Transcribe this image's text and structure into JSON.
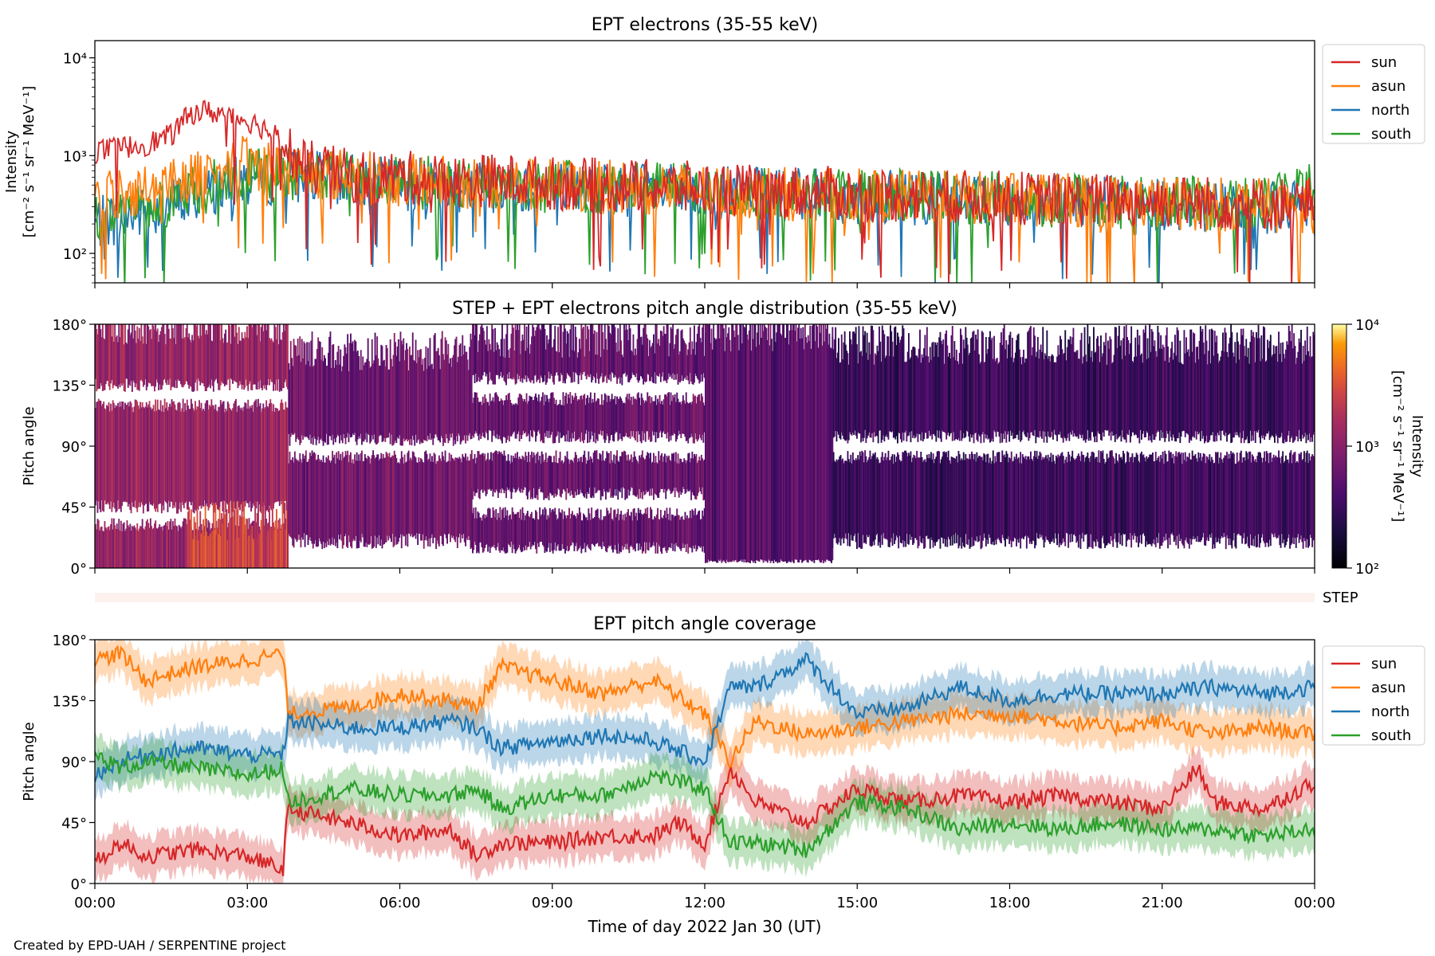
{
  "chart_data": [
    {
      "type": "line",
      "title": "EPT electrons (35-55 keV)",
      "ylabel": "Intensity\n[cm⁻² s⁻¹ sr⁻¹ MeV⁻¹]",
      "yscale": "log",
      "ylim": [
        50,
        15000
      ],
      "yticks": [
        "10²",
        "10³",
        "10⁴"
      ],
      "xlim_hours": [
        0,
        24
      ],
      "legend": "outside-top-right",
      "series": [
        {
          "name": "sun",
          "color": "#d62728",
          "x": [
            0,
            0.5,
            1,
            1.5,
            2,
            2.5,
            3,
            3.5,
            4,
            5,
            6,
            7,
            8,
            9,
            10,
            11,
            12,
            13,
            14,
            15,
            16,
            17,
            18,
            19,
            20,
            21,
            22,
            23,
            24
          ],
          "y": [
            1100,
            1200,
            1300,
            1600,
            2900,
            2700,
            2300,
            1700,
            800,
            620,
            600,
            550,
            560,
            520,
            500,
            480,
            460,
            430,
            420,
            400,
            390,
            380,
            370,
            360,
            350,
            340,
            330,
            320,
            330
          ]
        },
        {
          "name": "asun",
          "color": "#ff7f0e",
          "x": [
            0,
            1,
            2,
            3,
            4,
            5,
            6,
            7,
            8,
            9,
            10,
            11,
            12,
            13,
            14,
            15,
            16,
            17,
            18,
            19,
            20,
            21,
            22,
            23,
            24
          ],
          "y": [
            380,
            450,
            650,
            850,
            700,
            620,
            560,
            530,
            510,
            500,
            480,
            460,
            440,
            420,
            400,
            390,
            380,
            370,
            360,
            350,
            340,
            330,
            320,
            310,
            300
          ]
        },
        {
          "name": "north",
          "color": "#1f77b4",
          "x": [
            0,
            1,
            2,
            3,
            4,
            5,
            6,
            7,
            8,
            9,
            10,
            11,
            12,
            13,
            14,
            15,
            16,
            17,
            18,
            19,
            20,
            21,
            22,
            23,
            24
          ],
          "y": [
            200,
            260,
            380,
            560,
            620,
            560,
            520,
            500,
            490,
            480,
            460,
            440,
            420,
            400,
            390,
            380,
            370,
            360,
            350,
            340,
            330,
            320,
            310,
            300,
            290
          ]
        },
        {
          "name": "south",
          "color": "#2ca02c",
          "x": [
            0,
            1,
            2,
            3,
            4,
            5,
            6,
            7,
            8,
            9,
            10,
            11,
            12,
            13,
            14,
            15,
            16,
            17,
            18,
            19,
            20,
            21,
            22,
            23,
            24
          ],
          "y": [
            250,
            300,
            420,
            620,
            640,
            580,
            540,
            520,
            500,
            490,
            470,
            450,
            430,
            410,
            400,
            390,
            380,
            370,
            360,
            350,
            340,
            330,
            320,
            330,
            480
          ]
        }
      ]
    },
    {
      "type": "heatmap",
      "title": "STEP + EPT electrons pitch angle distribution (35-55 keV)",
      "ylabel": "Pitch angle",
      "yticks": [
        "0°",
        "45°",
        "90°",
        "135°",
        "180°"
      ],
      "ylim": [
        0,
        180
      ],
      "xlim_hours": [
        0,
        24
      ],
      "colorbar": {
        "label": "Intensity\n[cm⁻² s⁻¹ sr⁻¹ MeV⁻¹]",
        "scale": "log",
        "min": 100,
        "max": 10000,
        "ticks": [
          "10²",
          "10³",
          "10⁴"
        ],
        "colormap": "inferno"
      },
      "step_label": "STEP",
      "blocks": [
        {
          "t0": 0.0,
          "t1": 3.8,
          "pa_low": 0,
          "pa_high": 180,
          "intensity": 1200,
          "gaps": [
            [
              32,
              45
            ],
            [
              120,
              135
            ]
          ]
        },
        {
          "t0": 1.8,
          "t1": 3.8,
          "pa_low": 0,
          "pa_high": 35,
          "intensity": 2500,
          "gaps": []
        },
        {
          "t0": 3.8,
          "t1": 7.4,
          "pa_low": 20,
          "pa_high": 160,
          "intensity": 700,
          "gaps": [
            [
              82,
              95
            ]
          ]
        },
        {
          "t0": 7.4,
          "t1": 12.0,
          "pa_low": 15,
          "pa_high": 170,
          "intensity": 600,
          "gaps": [
            [
              40,
              55
            ],
            [
              82,
              97
            ],
            [
              125,
              140
            ]
          ]
        },
        {
          "t0": 12.0,
          "t1": 14.5,
          "pa_low": 5,
          "pa_high": 175,
          "intensity": 500,
          "gaps": []
        },
        {
          "t0": 14.5,
          "t1": 24.0,
          "pa_low": 20,
          "pa_high": 165,
          "intensity": 330,
          "gaps": [
            [
              82,
              97
            ]
          ]
        }
      ]
    },
    {
      "type": "line",
      "title": "EPT pitch angle coverage",
      "ylabel": "Pitch angle",
      "xlabel": "Time of day 2022 Jan 30 (UT)",
      "xticks": [
        "00:00",
        "03:00",
        "06:00",
        "09:00",
        "12:00",
        "15:00",
        "18:00",
        "21:00",
        "00:00"
      ],
      "yticks": [
        "0°",
        "45°",
        "90°",
        "135°",
        "180°"
      ],
      "ylim": [
        0,
        180
      ],
      "xlim_hours": [
        0,
        24
      ],
      "band_halfwidth_deg": 15,
      "legend": "outside-top-right",
      "series": [
        {
          "name": "sun",
          "color": "#d62728",
          "x": [
            0,
            0.5,
            1,
            2,
            3,
            3.7,
            3.8,
            5,
            6,
            7,
            7.5,
            8,
            9,
            10,
            11,
            11.5,
            12,
            12.5,
            13,
            14,
            15,
            16,
            17,
            18,
            19,
            20,
            21,
            21.7,
            22,
            23,
            24
          ],
          "y": [
            15,
            30,
            20,
            25,
            20,
            10,
            55,
            45,
            35,
            40,
            20,
            30,
            30,
            35,
            35,
            45,
            30,
            85,
            60,
            45,
            70,
            60,
            65,
            60,
            65,
            60,
            55,
            85,
            60,
            55,
            75
          ]
        },
        {
          "name": "asun",
          "color": "#ff7f0e",
          "x": [
            0,
            0.5,
            1,
            2,
            3,
            3.7,
            3.8,
            5,
            6,
            7,
            7.5,
            8,
            9,
            10,
            11,
            12,
            12.5,
            13,
            14,
            15,
            16,
            17,
            18,
            19,
            20,
            21,
            22,
            23,
            24
          ],
          "y": [
            165,
            170,
            150,
            160,
            165,
            170,
            125,
            130,
            140,
            135,
            130,
            160,
            150,
            140,
            150,
            125,
            90,
            120,
            110,
            115,
            120,
            125,
            125,
            120,
            115,
            120,
            110,
            115,
            110
          ]
        },
        {
          "name": "north",
          "color": "#1f77b4",
          "x": [
            0,
            0.5,
            1,
            2,
            3,
            3.7,
            3.8,
            5,
            6,
            7,
            7.5,
            8,
            9,
            10,
            11,
            12,
            12.5,
            13,
            14,
            15,
            16,
            17,
            18,
            19,
            20,
            21,
            22,
            23,
            24
          ],
          "y": [
            80,
            90,
            95,
            100,
            95,
            95,
            120,
            115,
            115,
            120,
            115,
            100,
            105,
            110,
            105,
            90,
            145,
            145,
            165,
            125,
            130,
            145,
            135,
            140,
            140,
            140,
            145,
            140,
            145
          ]
        },
        {
          "name": "south",
          "color": "#2ca02c",
          "x": [
            0,
            0.5,
            1,
            2,
            3,
            3.7,
            3.8,
            5,
            6,
            7,
            7.5,
            8,
            9,
            10,
            11,
            12,
            12.5,
            13,
            14,
            15,
            16,
            17,
            18,
            19,
            20,
            21,
            22,
            23,
            24
          ],
          "y": [
            95,
            85,
            90,
            85,
            80,
            85,
            60,
            70,
            65,
            65,
            70,
            55,
            65,
            65,
            80,
            70,
            30,
            30,
            25,
            60,
            55,
            40,
            45,
            40,
            45,
            40,
            40,
            35,
            40
          ]
        }
      ]
    }
  ],
  "credit": "Created by EPD-UAH / SERPENTINE project"
}
